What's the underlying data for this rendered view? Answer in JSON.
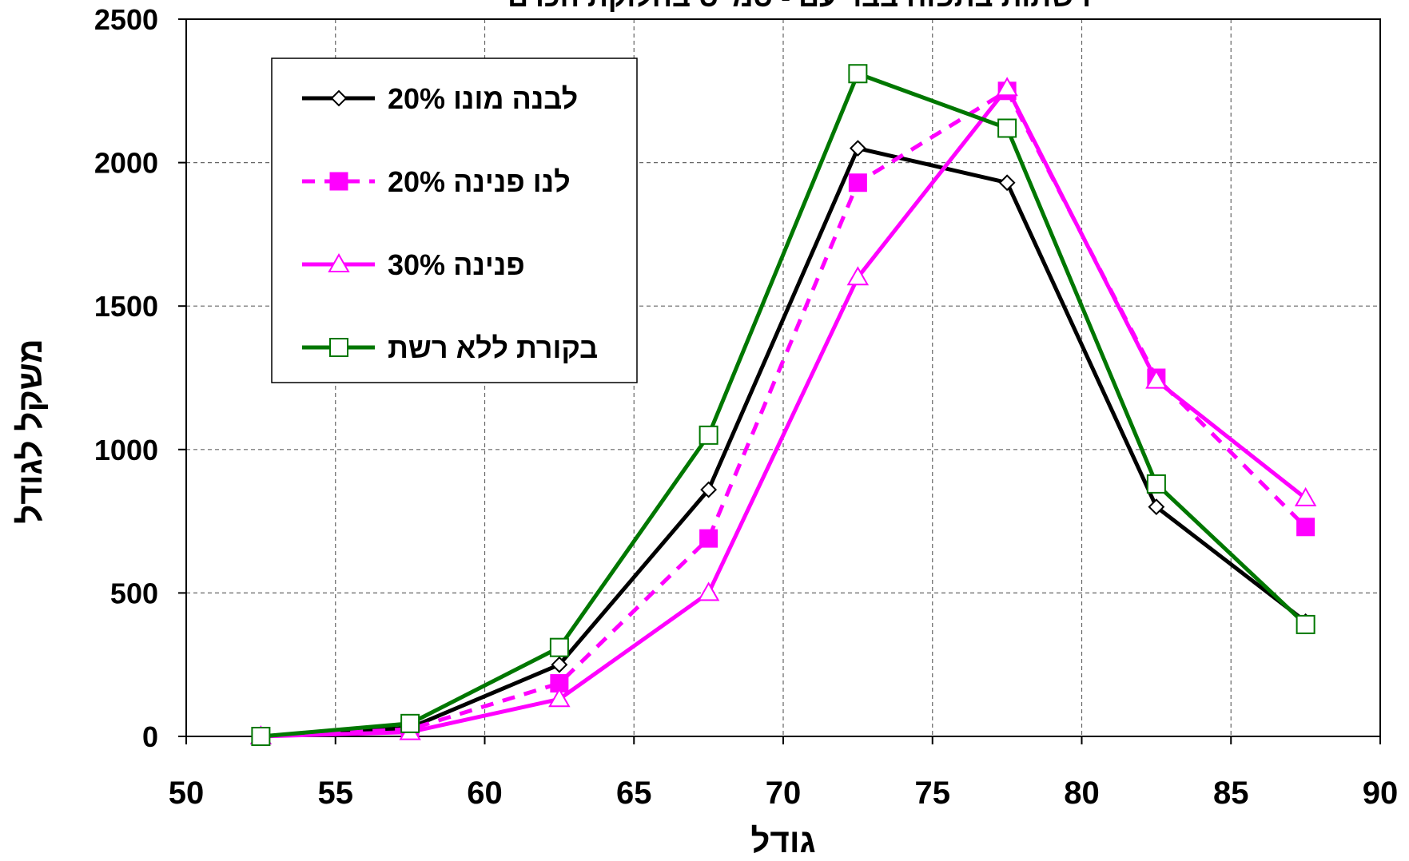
{
  "chart_data": {
    "type": "line",
    "title": "רשתות בתפוח בבר עם - סמ\"ס בחלוקת הכרם",
    "xlabel": "גודל",
    "ylabel": "משקל לגודל",
    "xlim": [
      50,
      90
    ],
    "ylim": [
      0,
      2500
    ],
    "xticks": [
      "50",
      "55",
      "60",
      "65",
      "70",
      "75",
      "80",
      "85",
      "90"
    ],
    "yticks": [
      "0",
      "500",
      "1000",
      "1500",
      "2000",
      "2500"
    ],
    "xtick_values": [
      50,
      55,
      60,
      65,
      70,
      75,
      80,
      85,
      90
    ],
    "ytick_values": [
      0,
      500,
      1000,
      1500,
      2000,
      2500
    ],
    "grid": true,
    "legend_position": "top-left",
    "x": [
      52.5,
      57.5,
      62.5,
      67.5,
      72.5,
      77.5,
      82.5,
      87.5
    ],
    "series": [
      {
        "name": "לבנה מונו 20%",
        "color": "#000000",
        "marker": "diamond-open",
        "line_style": "solid",
        "values": [
          0,
          30,
          250,
          860,
          2050,
          1930,
          800,
          400
        ]
      },
      {
        "name": "לנו פנינה 20%",
        "color": "#ff00ff",
        "marker": "square-filled",
        "line_style": "dashed",
        "values": [
          0,
          25,
          185,
          690,
          1930,
          2250,
          1250,
          730
        ]
      },
      {
        "name": "פנינה 30%",
        "color": "#ff00ff",
        "marker": "triangle-open",
        "line_style": "solid",
        "values": [
          0,
          15,
          130,
          500,
          1600,
          2260,
          1240,
          830
        ]
      },
      {
        "name": "בקורת ללא רשת",
        "color": "#007700",
        "marker": "square-open",
        "line_style": "solid",
        "values": [
          0,
          45,
          310,
          1050,
          2310,
          2120,
          880,
          390
        ]
      }
    ]
  }
}
